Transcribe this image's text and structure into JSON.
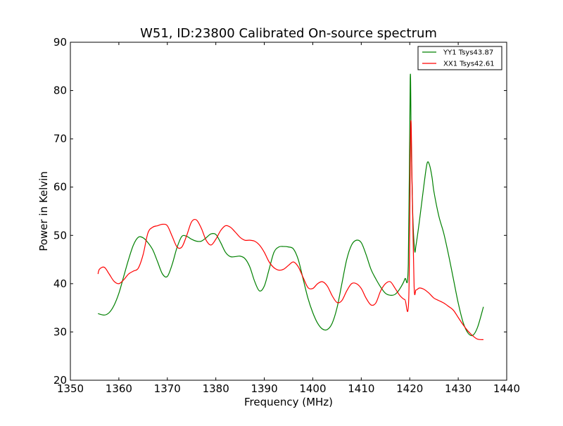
{
  "chart_data": {
    "type": "line",
    "title": "W51, ID:23800 Calibrated On-source spectrum",
    "xlabel": "Frequency (MHz)",
    "ylabel": "Power in Kelvin",
    "xlim": [
      1350,
      1440
    ],
    "ylim": [
      20,
      90
    ],
    "xticks": [
      1350,
      1360,
      1370,
      1380,
      1390,
      1400,
      1410,
      1420,
      1430,
      1440
    ],
    "yticks": [
      20,
      30,
      40,
      50,
      60,
      70,
      80,
      90
    ],
    "grid": false,
    "legend_position": "top-right",
    "series": [
      {
        "name": "YY1 Tsys43.87",
        "color": "#008000",
        "x": [
          1355.7,
          1357,
          1358,
          1359,
          1360,
          1361,
          1362,
          1363,
          1364,
          1365,
          1366,
          1367,
          1368,
          1369,
          1370,
          1371,
          1372,
          1373,
          1374,
          1375,
          1376,
          1377,
          1378,
          1379,
          1380,
          1381,
          1382,
          1383,
          1384,
          1385,
          1386,
          1387,
          1388,
          1389,
          1390,
          1391,
          1392,
          1393,
          1394,
          1395,
          1396,
          1397,
          1398,
          1399,
          1400,
          1401,
          1402,
          1403,
          1404,
          1405,
          1406,
          1407,
          1408,
          1409,
          1410,
          1411,
          1412,
          1413,
          1414,
          1415,
          1416,
          1417,
          1418,
          1419,
          1419.7,
          1420.1,
          1420.3,
          1420.6,
          1421,
          1421.3,
          1422,
          1423,
          1423.6,
          1424.1,
          1424.6,
          1425,
          1426,
          1427,
          1428,
          1429,
          1430,
          1431,
          1432,
          1433,
          1434,
          1435.2
        ],
        "y": [
          33.8,
          33.5,
          34.0,
          35.5,
          38.0,
          41.5,
          45.0,
          48.0,
          49.6,
          49.5,
          48.5,
          47.0,
          44.5,
          42.0,
          41.5,
          44.0,
          47.5,
          49.8,
          49.8,
          49.2,
          48.8,
          48.8,
          49.5,
          50.3,
          50.2,
          48.5,
          46.5,
          45.6,
          45.6,
          45.7,
          45.2,
          43.5,
          40.5,
          38.5,
          39.5,
          43.0,
          46.5,
          47.6,
          47.7,
          47.6,
          47.2,
          45.0,
          41.0,
          37.0,
          34.0,
          31.8,
          30.6,
          30.5,
          31.8,
          35.0,
          40.0,
          45.0,
          48.0,
          49.0,
          48.5,
          46.0,
          43.0,
          41.0,
          39.3,
          38.0,
          37.6,
          37.8,
          39.0,
          41.0,
          44.0,
          82.5,
          70.0,
          55.0,
          47.0,
          48.0,
          53.0,
          61.0,
          65.0,
          64.5,
          62.0,
          59.0,
          54.0,
          50.5,
          46.0,
          41.0,
          36.0,
          32.0,
          29.8,
          29.3,
          31.0,
          35.2
        ]
      },
      {
        "name": "XX1 Tsys42.61",
        "color": "#ff0000",
        "x": [
          1355.7,
          1356,
          1357,
          1358,
          1359,
          1360,
          1361,
          1362,
          1363,
          1364,
          1365,
          1366,
          1367,
          1368,
          1369,
          1370,
          1371,
          1372,
          1373,
          1374,
          1375,
          1376,
          1377,
          1378,
          1379,
          1380,
          1381,
          1382,
          1383,
          1384,
          1385,
          1386,
          1387,
          1388,
          1389,
          1390,
          1391,
          1392,
          1393,
          1394,
          1395,
          1396,
          1397,
          1398,
          1399,
          1400,
          1401,
          1402,
          1403,
          1404,
          1405,
          1406,
          1407,
          1408,
          1409,
          1410,
          1411,
          1412,
          1413,
          1414,
          1415,
          1416,
          1417,
          1418,
          1419,
          1419.8,
          1420.2,
          1420.5,
          1420.9,
          1421.3,
          1422,
          1423,
          1424,
          1425,
          1426,
          1427,
          1428,
          1429,
          1430,
          1431,
          1432,
          1433,
          1434,
          1435.2
        ],
        "y": [
          42.0,
          43.0,
          43.4,
          42.0,
          40.5,
          40.0,
          40.8,
          42.0,
          42.6,
          43.2,
          46.0,
          50.5,
          51.7,
          52.0,
          52.3,
          52.0,
          49.8,
          47.6,
          47.6,
          50.0,
          52.8,
          53.2,
          51.5,
          49.0,
          48.0,
          49.2,
          51.0,
          52.0,
          51.7,
          50.7,
          49.6,
          49.0,
          49.0,
          48.8,
          48.0,
          46.5,
          44.5,
          43.3,
          42.8,
          43.0,
          43.8,
          44.5,
          43.5,
          41.3,
          39.2,
          39.0,
          40.0,
          40.4,
          39.5,
          37.5,
          36.1,
          36.5,
          38.5,
          40.0,
          40.0,
          39.0,
          37.0,
          35.6,
          36.0,
          38.5,
          40.0,
          40.4,
          39.0,
          37.5,
          36.7,
          37.0,
          73.0,
          60.0,
          39.5,
          38.7,
          39.1,
          38.8,
          38.0,
          37.0,
          36.5,
          36.0,
          35.3,
          34.5,
          33.0,
          31.5,
          30.2,
          29.2,
          28.5,
          28.4
        ]
      }
    ]
  }
}
